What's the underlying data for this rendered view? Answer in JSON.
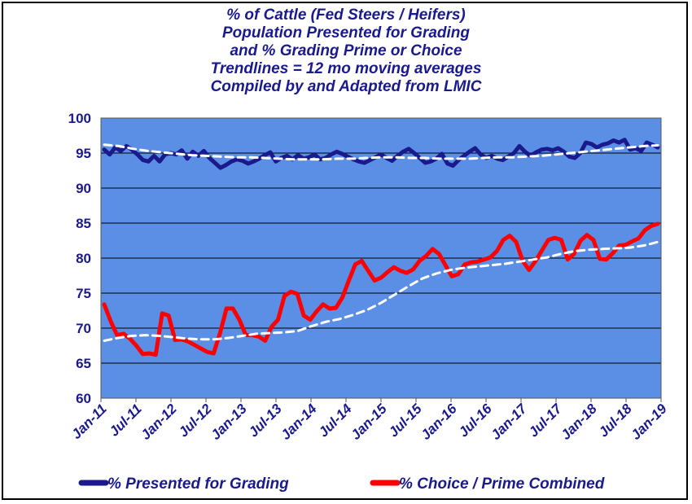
{
  "chart_data": {
    "type": "line",
    "title": [
      "% of Cattle (Fed Steers / Heifers)",
      "Population Presented for Grading",
      "and % Grading Prime or Choice",
      "Trendlines = 12 mo moving averages",
      "Compiled by and Adapted from LMIC"
    ],
    "ylim": [
      60,
      100
    ],
    "yticks": [
      60,
      65,
      70,
      75,
      80,
      85,
      90,
      95,
      100
    ],
    "xticks": [
      "Jan-11",
      "Jul-11",
      "Jan-12",
      "Jul-12",
      "Jan-13",
      "Jul-13",
      "Jan-14",
      "Jul-14",
      "Jan-15",
      "Jul-15",
      "Jan-16",
      "Jul-16",
      "Jan-17",
      "Jul-17",
      "Jan-18",
      "Jul-18",
      "Jan-19"
    ],
    "grid": true,
    "legend_position": "bottom",
    "plot_bg": "#5b8fe6",
    "series": [
      {
        "name": "% Presented for Grading",
        "color": "#1a1a8c",
        "values": [
          95.5,
          94.8,
          95.8,
          95.3,
          96,
          95.5,
          94.8,
          94,
          93.8,
          94.6,
          93.8,
          94.8,
          95,
          94.8,
          95.4,
          94.2,
          95.2,
          94.6,
          95.3,
          94.3,
          93.6,
          92.9,
          93.3,
          93.8,
          94.1,
          93.9,
          93.5,
          93.8,
          94.2,
          94.7,
          95.1,
          93.8,
          94.3,
          94.6,
          94.1,
          94.7,
          94.2,
          94.4,
          94.8,
          94.1,
          94.3,
          94.8,
          95.2,
          94.9,
          94.5,
          94.1,
          93.8,
          93.6,
          94,
          94.4,
          94.8,
          94.3,
          93.9,
          94.6,
          95.2,
          95.6,
          95,
          94.3,
          93.6,
          93.8,
          94.2,
          94.9,
          93.5,
          93.2,
          94,
          94.6,
          95.2,
          95.7,
          94.8,
          94.3,
          94.6,
          94.2,
          94,
          94.5,
          95,
          96,
          95.2,
          94.6,
          95.1,
          95.5,
          95.6,
          95.4,
          95.7,
          95.2,
          94.5,
          94.3,
          95,
          96.5,
          96.3,
          95.8,
          96.2,
          96.4,
          96.8,
          96.5,
          96.9,
          95.5,
          95.7,
          95.3,
          96.5,
          96.2,
          95.8
        ]
      },
      {
        "name": "% Choice / Prime Combined",
        "color": "#ff0000",
        "values": [
          73.4,
          71,
          69,
          69.2,
          68.5,
          67.5,
          66.3,
          66.4,
          66.2,
          72.1,
          71.8,
          68.3,
          68.4,
          68.1,
          67.6,
          67.1,
          66.6,
          66.4,
          69.3,
          72.8,
          72.8,
          71.2,
          69,
          69,
          68.8,
          68.2,
          70.2,
          71.2,
          74.6,
          75.2,
          74.9,
          71.8,
          71.2,
          72.4,
          73.4,
          72.8,
          72.9,
          74.4,
          76.8,
          79.1,
          79.6,
          78.2,
          76.8,
          77.2,
          78,
          78.7,
          78.2,
          77.9,
          78.4,
          79.6,
          80.3,
          81.3,
          80.6,
          79,
          77.4,
          77.7,
          79.1,
          79.4,
          79.5,
          79.8,
          80.1,
          81,
          82.6,
          83.2,
          82.3,
          79.6,
          78.3,
          79.6,
          81.1,
          82.6,
          82.9,
          82.6,
          79.8,
          80.6,
          82.5,
          83.3,
          82.6,
          79.9,
          79.8,
          80.7,
          81.8,
          81.9,
          82.4,
          82.8,
          84,
          84.6,
          84.9
        ]
      },
      {
        "name": "",
        "color": "#ffffff",
        "dashed": true,
        "values": [
          96.2,
          96,
          95.6,
          95.3,
          95.1,
          94.9,
          94.7,
          94.6,
          94.5,
          94.4,
          94.4,
          94.3,
          94.2,
          94.1,
          94.1,
          94.1,
          94.2,
          94.2,
          94.3,
          94.4,
          94.4,
          94.3,
          94.3,
          94.2,
          94.2,
          94.2,
          94.3,
          94.4,
          94.4,
          94.5,
          94.6,
          94.8,
          95,
          95.2,
          95.4,
          95.6,
          95.8,
          96,
          96.1
        ]
      },
      {
        "name": "",
        "color": "#ffffff",
        "dashed": true,
        "values": [
          68.2,
          68.6,
          68.9,
          69,
          68.9,
          68.7,
          68.5,
          68.4,
          68.4,
          68.6,
          68.9,
          69.2,
          69.3,
          69.4,
          69.6,
          70.3,
          70.9,
          71.3,
          71.9,
          72.6,
          73.6,
          74.8,
          76,
          77.1,
          77.8,
          78.3,
          78.6,
          78.8,
          79,
          79.2,
          79.5,
          79.8,
          80.1,
          80.6,
          81,
          81.2,
          81.3,
          81.4,
          81.5,
          81.8,
          82.3
        ]
      }
    ]
  }
}
